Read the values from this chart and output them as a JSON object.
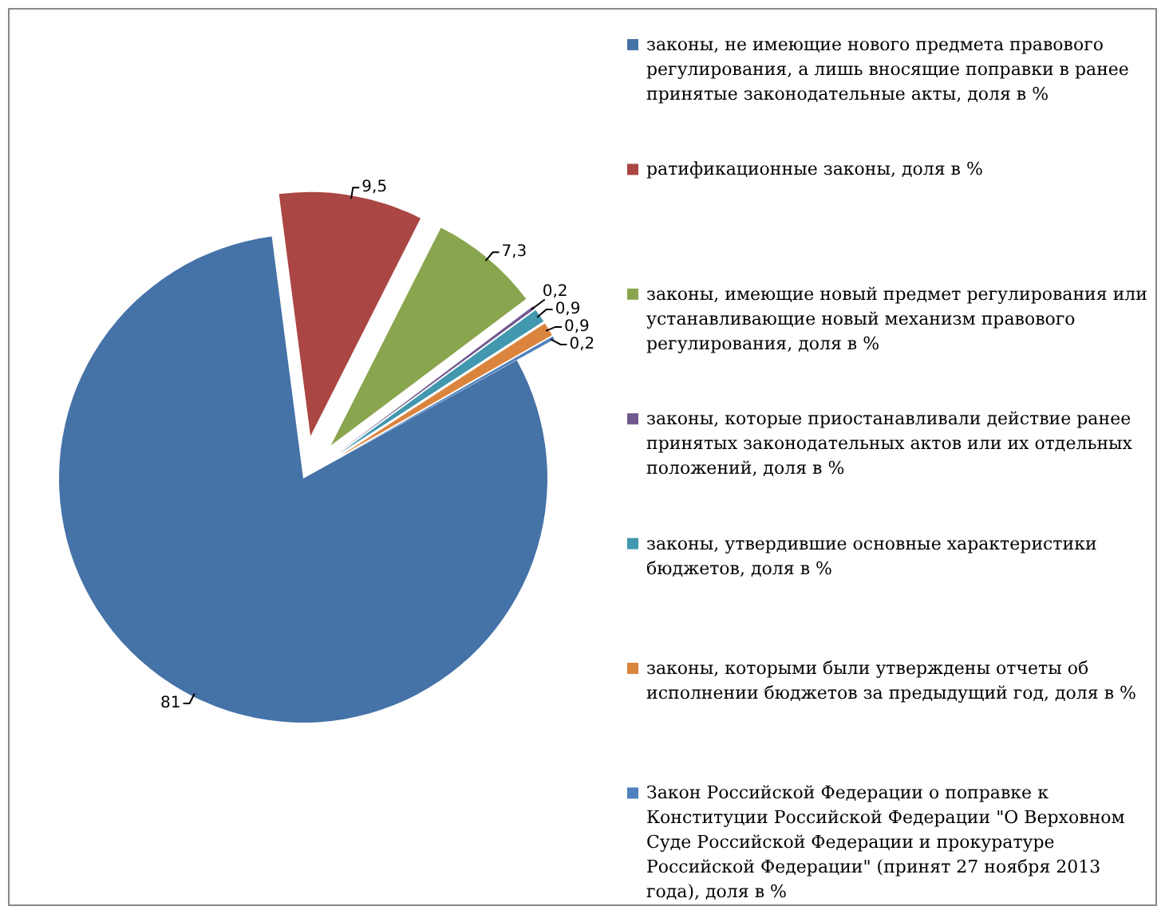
{
  "chart_data": {
    "type": "pie",
    "categories": [
      "законы, не имеющие нового предмета правового регулирования, а лишь вносящие поправки в ранее принятые законодательные акты, доля в %",
      "ратификационные законы, доля в %",
      "законы, имеющие новый предмет регулирования или устанавливающие новый механизм правового регулирования, доля в %",
      "законы, которые приостанавливали действие ранее принятых законодательных актов или их отдельных положений, доля в %",
      "законы, утвердившие основные характеристики бюджетов, доля в %",
      "законы, которыми были утверждены отчеты об исполнении бюджетов за предыдущий год, доля в %",
      "Закон Российской Федерации о поправке к Конституции Российской Федерации \"О Верховном Суде Российской Федерации и прокуратуре Российской Федерации\" (принят 27 ноября 2013 года), доля в %"
    ],
    "values": [
      81,
      9.5,
      7.3,
      0.2,
      0.9,
      0.9,
      0.2
    ],
    "colors": [
      "#4572a7",
      "#aa4643",
      "#89a54e",
      "#71588f",
      "#4198af",
      "#db843d",
      "#4f81bd"
    ],
    "value_labels": [
      "81",
      "9,5",
      "7,3",
      "0,2",
      "0,9",
      "0,9",
      "0,2"
    ],
    "legend": "right"
  }
}
